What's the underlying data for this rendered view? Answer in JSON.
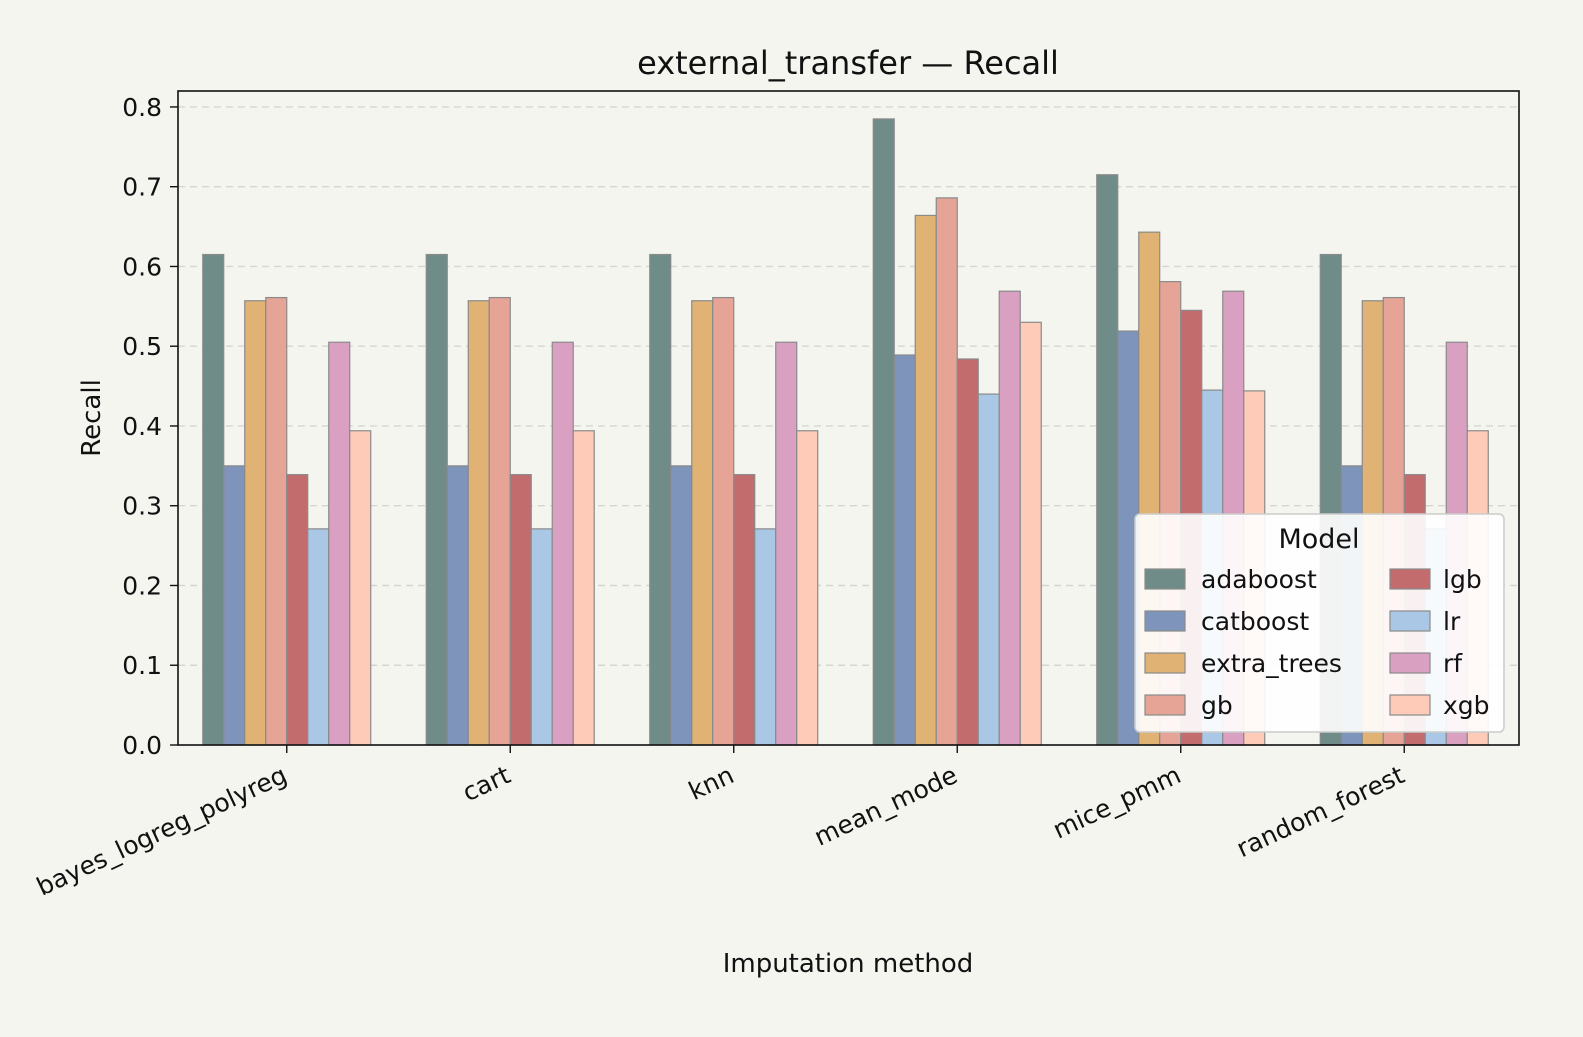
{
  "chart_data": {
    "type": "bar",
    "title": "external_transfer — Recall",
    "xlabel": "Imputation method",
    "ylabel": "Recall",
    "ylim": [
      0,
      0.82
    ],
    "yticks": [
      "0.0",
      "0.1",
      "0.2",
      "0.3",
      "0.4",
      "0.5",
      "0.6",
      "0.7",
      "0.8"
    ],
    "grid": "y-dashed",
    "categories": [
      "bayes_logreg_polyreg",
      "cart",
      "knn",
      "mean_mode",
      "mice_pmm",
      "random_forest"
    ],
    "legend": {
      "title": "Model",
      "placement": "right"
    },
    "series": [
      {
        "name": "adaboost",
        "color": "#6f8c88",
        "values": [
          0.615,
          0.615,
          0.615,
          0.785,
          0.715,
          0.615
        ]
      },
      {
        "name": "catboost",
        "color": "#7f94bb",
        "values": [
          0.35,
          0.35,
          0.35,
          0.489,
          0.519,
          0.35
        ]
      },
      {
        "name": "extra_trees",
        "color": "#e0b374",
        "values": [
          0.557,
          0.557,
          0.557,
          0.664,
          0.643,
          0.557
        ]
      },
      {
        "name": "gb",
        "color": "#e5a496",
        "values": [
          0.561,
          0.561,
          0.561,
          0.686,
          0.581,
          0.561
        ]
      },
      {
        "name": "lgb",
        "color": "#c26c6e",
        "values": [
          0.339,
          0.339,
          0.339,
          0.484,
          0.545,
          0.339
        ]
      },
      {
        "name": "lr",
        "color": "#aac8e5",
        "values": [
          0.271,
          0.271,
          0.271,
          0.44,
          0.445,
          0.271
        ]
      },
      {
        "name": "rf",
        "color": "#d9a0c1",
        "values": [
          0.505,
          0.505,
          0.505,
          0.569,
          0.569,
          0.505
        ]
      },
      {
        "name": "xgb",
        "color": "#fdcbb7",
        "values": [
          0.394,
          0.394,
          0.394,
          0.53,
          0.444,
          0.394
        ]
      }
    ]
  }
}
